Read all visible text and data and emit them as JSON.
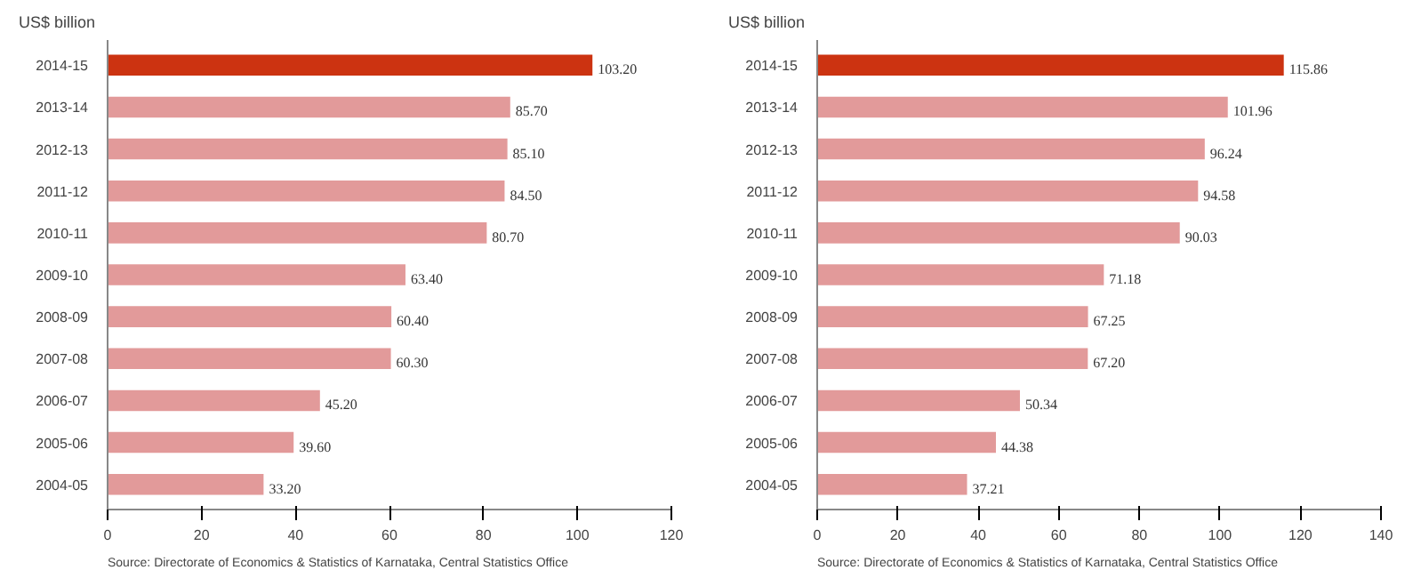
{
  "chart_data": [
    {
      "type": "bar",
      "orientation": "horizontal",
      "title": "US$ billion",
      "categories": [
        "2014-15",
        "2013-14",
        "2012-13",
        "2011-12",
        "2010-11",
        "2009-10",
        "2008-09",
        "2007-08",
        "2006-07",
        "2005-06",
        "2004-05"
      ],
      "values": [
        103.2,
        85.7,
        85.1,
        84.5,
        80.7,
        63.4,
        60.4,
        60.3,
        45.2,
        39.6,
        33.2
      ],
      "value_labels": [
        "103.20",
        "85.70",
        "85.10",
        "84.50",
        "80.70",
        "63.40",
        "60.40",
        "60.30",
        "45.20",
        "39.60",
        "33.20"
      ],
      "colors": [
        "#cc3311",
        "#e29a9a",
        "#e29a9a",
        "#e29a9a",
        "#e29a9a",
        "#e29a9a",
        "#e29a9a",
        "#e29a9a",
        "#e29a9a",
        "#e29a9a",
        "#e29a9a"
      ],
      "xlim": [
        0,
        120
      ],
      "xticks": [
        0,
        20,
        40,
        60,
        80,
        100,
        120
      ],
      "annotations": [
        "Source: Directorate of Economics & Statistics of Karnataka, Central Statistics Office"
      ]
    },
    {
      "type": "bar",
      "orientation": "horizontal",
      "title": "US$ billion",
      "categories": [
        "2014-15",
        "2013-14",
        "2012-13",
        "2011-12",
        "2010-11",
        "2009-10",
        "2008-09",
        "2007-08",
        "2006-07",
        "2005-06",
        "2004-05"
      ],
      "values": [
        115.86,
        101.96,
        96.24,
        94.58,
        90.03,
        71.18,
        67.25,
        67.2,
        50.34,
        44.38,
        37.21
      ],
      "value_labels": [
        "115.86",
        "101.96",
        "96.24",
        "94.58",
        "90.03",
        "71.18",
        "67.25",
        "67.20",
        "50.34",
        "44.38",
        "37.21"
      ],
      "colors": [
        "#cc3311",
        "#e29a9a",
        "#e29a9a",
        "#e29a9a",
        "#e29a9a",
        "#e29a9a",
        "#e29a9a",
        "#e29a9a",
        "#e29a9a",
        "#e29a9a",
        "#e29a9a"
      ],
      "xlim": [
        0,
        140
      ],
      "xticks": [
        0,
        20,
        40,
        60,
        80,
        100,
        120,
        140
      ],
      "annotations": [
        "Source: Directorate of Economics & Statistics of Karnataka, Central Statistics Office"
      ]
    }
  ]
}
